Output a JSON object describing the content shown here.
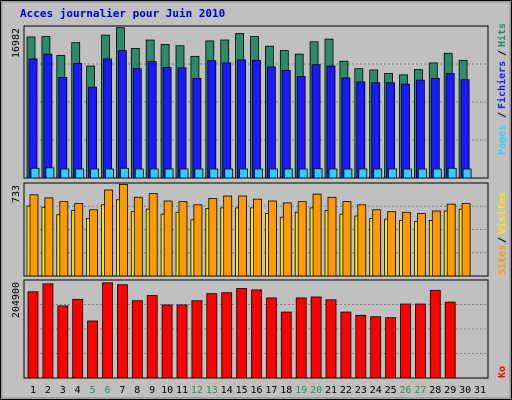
{
  "title": "Acces journalier pour Juin 2010",
  "colors": {
    "hits": "#2e8b6a",
    "files": "#1a1aff",
    "pages": "#33ccff",
    "visits": "#ffe600",
    "sites": "#ff9900",
    "ko": "#ff0000",
    "weekend_label": "#2e8b57",
    "weekday_label": "#000000",
    "panel_bg": "#c0c0c0",
    "title_color": "#0000cc"
  },
  "labels": {
    "pages": "Pages",
    "fichiers": "Fichiers",
    "hits": "Hits",
    "visites": "Visites",
    "sites": "Sites",
    "ko": "Ko",
    "sep": "/"
  },
  "chart_data": [
    {
      "type": "bar",
      "name": "hits-files-pages",
      "ymax_label": "16982",
      "ylim": [
        0,
        16982
      ],
      "categories": [
        "1",
        "2",
        "3",
        "4",
        "5",
        "6",
        "7",
        "8",
        "9",
        "10",
        "11",
        "12",
        "13",
        "14",
        "15",
        "16",
        "17",
        "18",
        "19",
        "20",
        "21",
        "22",
        "23",
        "24",
        "25",
        "26",
        "27",
        "28",
        "29",
        "30",
        "31"
      ],
      "series": [
        {
          "name": "Hits",
          "values": [
            16000,
            16050,
            13900,
            15350,
            12700,
            16200,
            17050,
            14700,
            15650,
            15150,
            15000,
            13800,
            15550,
            15650,
            16400,
            16050,
            14950,
            14450,
            14050,
            15450,
            15750,
            13250,
            12400,
            12250,
            11850,
            11700,
            12300,
            13050,
            14150,
            13350,
            0
          ]
        },
        {
          "name": "Fichiers",
          "values": [
            13500,
            14050,
            11400,
            13000,
            10300,
            13500,
            14450,
            12400,
            13200,
            12550,
            12500,
            11300,
            13300,
            13050,
            13400,
            13350,
            12600,
            12200,
            11500,
            12850,
            12700,
            11350,
            10900,
            10800,
            10800,
            10650,
            11100,
            11300,
            11850,
            11150,
            0
          ]
        },
        {
          "name": "Pages",
          "values": [
            1100,
            1150,
            800,
            1000,
            800,
            1000,
            1100,
            1000,
            1000,
            1000,
            1000,
            950,
            900,
            950,
            900,
            1000,
            900,
            900,
            850,
            1050,
            1000,
            900,
            800,
            800,
            750,
            850,
            750,
            900,
            1100,
            1000,
            0
          ]
        }
      ],
      "weekend_days": [
        "5",
        "6",
        "12",
        "13",
        "19",
        "20",
        "26",
        "27"
      ]
    },
    {
      "type": "bar",
      "name": "visits-sites",
      "ymax_label": "733",
      "ylim": [
        0,
        733
      ],
      "categories": [
        "1",
        "2",
        "3",
        "4",
        "5",
        "6",
        "7",
        "8",
        "9",
        "10",
        "11",
        "12",
        "13",
        "14",
        "15",
        "16",
        "17",
        "18",
        "19",
        "20",
        "21",
        "22",
        "23",
        "24",
        "25",
        "26",
        "27",
        "28",
        "29",
        "30",
        "31"
      ],
      "series": [
        {
          "name": "Sites",
          "values": [
            650,
            625,
            595,
            580,
            530,
            688,
            733,
            630,
            660,
            600,
            595,
            570,
            620,
            640,
            640,
            615,
            600,
            585,
            595,
            655,
            630,
            595,
            570,
            530,
            515,
            510,
            500,
            520,
            575,
            580,
            0
          ]
        },
        {
          "name": "Visites",
          "values": [
            560,
            550,
            490,
            525,
            460,
            570,
            610,
            515,
            535,
            495,
            510,
            450,
            540,
            545,
            545,
            545,
            500,
            470,
            510,
            545,
            525,
            495,
            480,
            460,
            455,
            445,
            435,
            445,
            520,
            535,
            0
          ]
        }
      ],
      "weekend_days": [
        "5",
        "6",
        "12",
        "13",
        "19",
        "20",
        "26",
        "27"
      ]
    },
    {
      "type": "bar",
      "name": "ko",
      "ymax_label": "204900",
      "ylim": [
        0,
        204900
      ],
      "categories": [
        "1",
        "2",
        "3",
        "4",
        "5",
        "6",
        "7",
        "8",
        "9",
        "10",
        "11",
        "12",
        "13",
        "14",
        "15",
        "16",
        "17",
        "18",
        "19",
        "20",
        "21",
        "22",
        "23",
        "24",
        "25",
        "26",
        "27",
        "28",
        "29",
        "30",
        "31"
      ],
      "series": [
        {
          "name": "Ko",
          "values": [
            183000,
            200000,
            153000,
            167000,
            121000,
            202000,
            198000,
            164000,
            175000,
            155000,
            155000,
            164000,
            179000,
            181000,
            190000,
            187000,
            170000,
            140000,
            170000,
            172000,
            166000,
            140000,
            133000,
            130000,
            128000,
            157000,
            157000,
            186000,
            161000,
            0,
            0
          ]
        }
      ],
      "weekend_days": [
        "5",
        "6",
        "12",
        "13",
        "19",
        "20",
        "26",
        "27"
      ]
    }
  ]
}
